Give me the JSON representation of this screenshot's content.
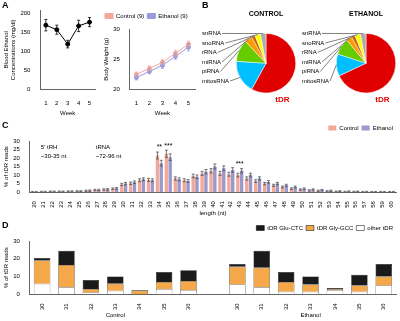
{
  "chart_data": [
    {
      "type": "line",
      "panel_label": "A",
      "x": [
        1,
        2,
        3,
        4,
        5
      ],
      "series": [
        {
          "color": "#000000",
          "values": [
            170,
            158,
            120,
            168,
            178
          ],
          "errors": [
            15,
            12,
            10,
            15,
            12
          ]
        }
      ],
      "xlabel": "Week",
      "ylabel": "Blood Ethanol\nConcentrations (mg/dl)",
      "xlim": [
        0.5,
        5.5
      ],
      "xticks": [
        1,
        2,
        3,
        4,
        5
      ],
      "ylim": [
        0,
        210
      ],
      "yticks": [
        0,
        50,
        100,
        150,
        200
      ],
      "grid": false,
      "marker": "circle"
    },
    {
      "type": "line",
      "x": [
        1,
        2,
        3,
        4,
        5
      ],
      "series": [
        {
          "name": "Control (9)",
          "color": "#f4a89a",
          "values": [
            22.5,
            23.5,
            24.5,
            26.0,
            27.5
          ],
          "errors": [
            0.4,
            0.4,
            0.4,
            0.5,
            0.5
          ]
        },
        {
          "name": "Ethanol (9)",
          "color": "#9999dd",
          "values": [
            22.0,
            23.0,
            24.0,
            25.5,
            27.0
          ],
          "errors": [
            0.4,
            0.4,
            0.5,
            0.5,
            0.6
          ]
        }
      ],
      "xlabel": "Week",
      "ylabel": "Body Weight (g)",
      "xlim": [
        0.5,
        5.5
      ],
      "xticks": [
        1,
        2,
        3,
        4,
        5
      ],
      "ylim": [
        20,
        30
      ],
      "yticks": [
        20,
        25,
        30
      ],
      "grid": false,
      "marker": "circle",
      "legend": "upper left"
    },
    {
      "type": "pie",
      "panel_label": "B",
      "title": "CONTROL",
      "categories": [
        "tDR",
        "mitosRNA",
        "piRNA",
        "miRNA",
        "rRNA",
        "snoRNA",
        "snRNA"
      ],
      "values": [
        58,
        18,
        12,
        4,
        2,
        3,
        3
      ],
      "colors": [
        "#e00000",
        "#00bfff",
        "#66cc00",
        "#ff9900",
        "#cc6600",
        "#ffff00",
        "#aaaaaa"
      ]
    },
    {
      "type": "pie",
      "title": "ETHANOL",
      "categories": [
        "tDR",
        "mitosRNA",
        "piRNA",
        "miRNA",
        "rRNA",
        "snoRNA",
        "snRNA"
      ],
      "values": [
        68,
        12,
        9,
        3,
        2,
        3,
        3
      ],
      "colors": [
        "#e00000",
        "#00bfff",
        "#66cc00",
        "#ff9900",
        "#cc6600",
        "#ffff00",
        "#aaaaaa"
      ]
    },
    {
      "type": "bar",
      "panel_label": "C",
      "categories": [
        "20",
        "21",
        "22",
        "23",
        "24",
        "25",
        "26",
        "27",
        "28",
        "29",
        "30",
        "31",
        "32",
        "33",
        "34",
        "35",
        "36",
        "37",
        "38",
        "39",
        "40",
        "41",
        "42",
        "43",
        "44",
        "45",
        "46",
        "47",
        "48",
        "49",
        "50",
        "51",
        "52",
        "53",
        "54",
        "55",
        "56",
        "57",
        "58",
        "59",
        "60"
      ],
      "series": [
        {
          "name": "Control",
          "color": "#f4a89a",
          "values": [
            0.1,
            0.2,
            0.3,
            0.3,
            0.4,
            0.5,
            0.8,
            1.2,
            1.5,
            2.0,
            4.5,
            5.2,
            7.0,
            7.2,
            21.5,
            22.5,
            8.0,
            7.0,
            9.5,
            11.0,
            12.5,
            11.0,
            10.5,
            10.0,
            8.0,
            6.5,
            5.0,
            4.0,
            3.0,
            2.0,
            1.5,
            1.0,
            0.8,
            0.5,
            0.3,
            0.2,
            0.2,
            0.1,
            0.1,
            0.1,
            0.1
          ],
          "errors": [
            0.308,
            0.316,
            0.324,
            0.324,
            0.332,
            0.34,
            0.364,
            0.396,
            0.42,
            0.46,
            0.66,
            0.716,
            0.86,
            0.876,
            2.02,
            2.1,
            0.94,
            0.86,
            1.06,
            1.18,
            1.3,
            1.18,
            1.14,
            1.1,
            0.94,
            0.82,
            0.7,
            0.62,
            0.54,
            0.46,
            0.42,
            0.38,
            0.364,
            0.34,
            0.324,
            0.316,
            0.316,
            0.308,
            0.308,
            0.308,
            0.308
          ]
        },
        {
          "name": "Ethanol",
          "color": "#9999cc",
          "values": [
            0.1,
            0.2,
            0.3,
            0.3,
            0.4,
            0.5,
            0.9,
            1.3,
            1.6,
            2.2,
            5.0,
            5.8,
            7.5,
            7.0,
            17.0,
            20.5,
            7.5,
            6.5,
            9.0,
            12.0,
            15.0,
            14.0,
            13.0,
            12.5,
            10.0,
            8.0,
            6.0,
            5.0,
            4.0,
            3.0,
            2.0,
            1.5,
            1.2,
            0.8,
            0.5,
            0.4,
            0.3,
            0.2,
            0.1,
            0.1,
            0.1
          ],
          "errors": [
            0.308,
            0.316,
            0.324,
            0.324,
            0.332,
            0.34,
            0.372,
            0.404,
            0.428,
            0.476,
            0.7,
            0.764,
            0.9,
            0.86,
            1.66,
            1.94,
            0.9,
            0.82,
            1.02,
            1.26,
            1.5,
            1.42,
            1.34,
            1.3,
            1.1,
            0.94,
            0.78,
            0.7,
            0.62,
            0.54,
            0.46,
            0.42,
            0.396,
            0.364,
            0.34,
            0.332,
            0.324,
            0.316,
            0.308,
            0.308,
            0.308
          ]
        }
      ],
      "xlabel": "length (nt)",
      "ylabel": "% of tDR reads",
      "ylim": [
        0,
        30
      ],
      "yticks": [
        0,
        5,
        10,
        15,
        20,
        25,
        30
      ],
      "grid": false,
      "legend": "upper right",
      "annotations": [
        {
          "text": "**",
          "x": "34"
        },
        {
          "text": "***",
          "x": "35"
        },
        {
          "text": "***",
          "x": "43"
        },
        {
          "text": "5' tRH"
        },
        {
          "text": "tRNA"
        },
        {
          "text": "~30-35 nt"
        },
        {
          "text": "~72-96 nt"
        }
      ]
    },
    {
      "type": "bar",
      "panel_label": "D",
      "stacked": true,
      "categories": [
        "30",
        "31",
        "32",
        "33",
        "34",
        "35",
        "36",
        null,
        "30",
        "31",
        "32",
        "33",
        "34",
        "35",
        "36"
      ],
      "group_labels": [
        "Control",
        "Ethanol"
      ],
      "series": [
        {
          "name": "other tDR",
          "color": "#ffffff",
          "values": [
            6.0,
            4.0,
            1.0,
            2.0,
            0.0,
            3.0,
            2.5,
            null,
            5.5,
            4.0,
            1.5,
            1.5,
            2.5,
            1.5,
            5.0
          ]
        },
        {
          "name": "tDR Gly-GCC",
          "color": "#f4a84a",
          "values": [
            13.0,
            12.5,
            2.0,
            4.0,
            2.0,
            4.0,
            5.0,
            null,
            10.0,
            11.0,
            5.5,
            4.0,
            0.5,
            3.5,
            5.0
          ]
        },
        {
          "name": "tDR Glu-CTC",
          "color": "#1a1a1a",
          "values": [
            1.5,
            8.0,
            5.0,
            4.0,
            0.5,
            5.5,
            6.0,
            null,
            1.5,
            9.5,
            5.5,
            4.5,
            0.5,
            6.0,
            7.0
          ]
        }
      ],
      "ylabel": "% of tDR reads",
      "ylim": [
        0,
        30
      ],
      "yticks": [
        0,
        10,
        20,
        30
      ],
      "grid": false,
      "legend": "upper right"
    }
  ]
}
